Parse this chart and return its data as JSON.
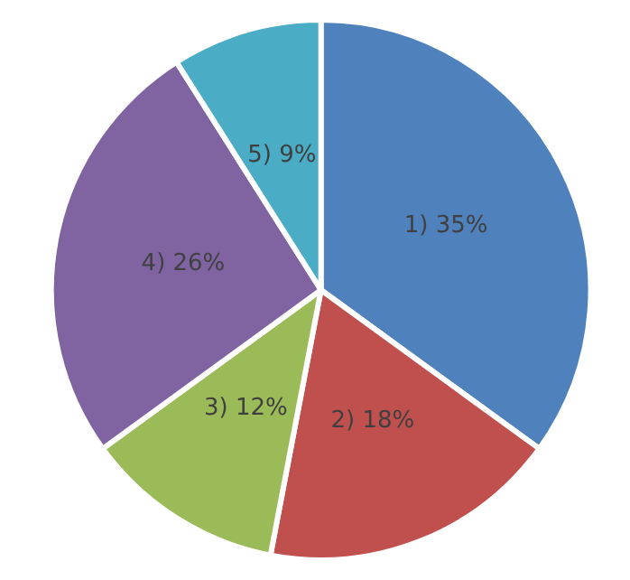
{
  "chart_data": {
    "type": "pie",
    "categories": [
      "1)",
      "2)",
      "3)",
      "4)",
      "5)"
    ],
    "values": [
      35,
      18,
      12,
      26,
      9
    ],
    "value_labels": [
      "35%",
      "18%",
      "12%",
      "26%",
      "9%"
    ],
    "colors": [
      "#4f81bd",
      "#c0504d",
      "#9bbb59",
      "#8064a2",
      "#4bacc6"
    ],
    "legend": false
  }
}
